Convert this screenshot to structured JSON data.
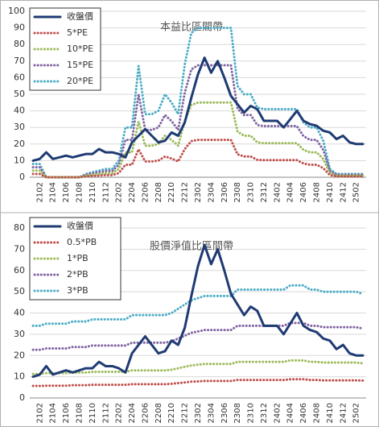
{
  "chart_data": [
    {
      "type": "line",
      "title": "本益比區間帶",
      "legend": "upper left",
      "grid": true,
      "categories": [
        null,
        "2102",
        null,
        "2104",
        null,
        "2106",
        null,
        "2108",
        null,
        "2110",
        null,
        "2112",
        null,
        "2202",
        null,
        "2204",
        null,
        "2206",
        null,
        "2208",
        null,
        "2210",
        null,
        "2212",
        null,
        "2302",
        null,
        "2304",
        null,
        "2306",
        null,
        "2308",
        null,
        "2310",
        null,
        "2312",
        null,
        "2402",
        null,
        "2404",
        null,
        "2406",
        null,
        "2408",
        null,
        "2410",
        null,
        "2412",
        null,
        "2502",
        null
      ],
      "ylim": [
        0,
        100
      ],
      "yticks": [
        0,
        10,
        20,
        30,
        40,
        50,
        60,
        70,
        80,
        90,
        100
      ],
      "series": [
        {
          "name": "收盤價",
          "color": "#1f3b73",
          "style": "solid",
          "values": [
            10,
            11,
            15,
            11,
            12,
            13,
            12,
            13,
            14,
            14,
            17,
            15,
            15,
            14,
            12,
            21,
            25,
            29,
            25,
            21,
            22,
            27,
            25,
            33,
            48,
            62,
            72,
            63,
            70,
            60,
            49,
            44,
            39,
            43,
            41,
            34,
            34,
            34,
            30,
            35,
            40,
            34,
            32,
            31,
            28,
            27,
            23,
            25,
            21,
            20,
            20
          ]
        },
        {
          "name": "5*PE",
          "color": "#c0504d",
          "style": "dotted",
          "values": [
            2,
            2,
            0,
            0,
            0,
            0,
            0,
            0,
            0.5,
            0.8,
            1,
            1.3,
            1.3,
            2.5,
            7.5,
            7.5,
            16.8,
            9.5,
            9.5,
            10,
            12.5,
            11.3,
            9.5,
            17,
            21.8,
            22.5,
            22.5,
            22.5,
            22.5,
            22.5,
            22.5,
            13.8,
            12.5,
            12.5,
            10.5,
            10.3,
            10.3,
            10.3,
            10.3,
            10.3,
            10.3,
            8.3,
            7.5,
            7.5,
            5.5,
            1.3,
            0.5,
            0.5,
            0.5,
            0.5,
            0.5
          ]
        },
        {
          "name": "10*PE",
          "color": "#9bbb59",
          "style": "dotted",
          "values": [
            4,
            4,
            0,
            0,
            0,
            0,
            0,
            0,
            1,
            1.5,
            2,
            2.5,
            2.5,
            5,
            15,
            15,
            33.5,
            19,
            19,
            20,
            25,
            22.5,
            19,
            34,
            43.5,
            45,
            45,
            45,
            45,
            45,
            45,
            27.5,
            25,
            25,
            21,
            20.5,
            20.5,
            20.5,
            20.5,
            20.5,
            20.5,
            16.5,
            15,
            15,
            11,
            2.5,
            1,
            1,
            1,
            1,
            1
          ]
        },
        {
          "name": "15*PE",
          "color": "#8064a2",
          "style": "dotted",
          "values": [
            6,
            6,
            0,
            0,
            0,
            0,
            0,
            0,
            1.5,
            2.3,
            3,
            3.8,
            3.8,
            7.5,
            22.5,
            22.5,
            50,
            28.5,
            28.5,
            30,
            37.5,
            33.8,
            28.5,
            51,
            65,
            67.5,
            67.5,
            67.5,
            67.5,
            67.5,
            67.5,
            41.3,
            37.5,
            37.5,
            31.5,
            30.8,
            30.8,
            30.8,
            30.8,
            30.8,
            30.8,
            24.8,
            22.5,
            22.5,
            16.5,
            3.8,
            1.5,
            1.5,
            1.5,
            1.5,
            1.5
          ]
        },
        {
          "name": "20*PE",
          "color": "#4bacc6",
          "style": "dotted",
          "values": [
            8,
            8,
            0,
            0,
            0,
            0,
            0,
            0,
            2,
            3,
            4,
            5,
            5,
            10,
            30,
            30,
            67,
            38,
            38,
            40,
            50,
            45,
            38,
            68,
            87,
            90,
            90,
            90,
            90,
            90,
            90,
            55,
            50,
            50,
            42,
            41,
            41,
            41,
            41,
            41,
            41,
            33,
            30,
            30,
            22,
            5,
            2,
            2,
            2,
            2,
            2
          ]
        }
      ]
    },
    {
      "type": "line",
      "title": "股價淨值比區間帶",
      "legend": "upper left",
      "grid": true,
      "categories": [
        null,
        "2102",
        null,
        "2104",
        null,
        "2106",
        null,
        "2108",
        null,
        "2110",
        null,
        "2112",
        null,
        "2202",
        null,
        "2204",
        null,
        "2206",
        null,
        "2208",
        null,
        "2210",
        null,
        "2212",
        null,
        "2302",
        null,
        "2304",
        null,
        "2306",
        null,
        "2308",
        null,
        "2310",
        null,
        "2312",
        null,
        "2402",
        null,
        "2404",
        null,
        "2406",
        null,
        "2408",
        null,
        "2410",
        null,
        "2412",
        null,
        "2502",
        null
      ],
      "ylim": [
        0,
        80
      ],
      "yticks": [
        0,
        10,
        20,
        30,
        40,
        50,
        60,
        70,
        80
      ],
      "series": [
        {
          "name": "收盤價",
          "color": "#1f3b73",
          "style": "solid",
          "values": [
            10,
            11,
            15,
            11,
            12,
            13,
            12,
            13,
            14,
            14,
            17,
            15,
            15,
            14,
            12,
            21,
            25,
            29,
            25,
            21,
            22,
            27,
            25,
            33,
            48,
            62,
            72,
            63,
            70,
            60,
            49,
            44,
            39,
            43,
            41,
            34,
            34,
            34,
            30,
            35,
            40,
            34,
            32,
            31,
            28,
            27,
            23,
            25,
            21,
            20,
            20
          ]
        },
        {
          "name": "0.5*PB",
          "color": "#c0504d",
          "style": "dotted",
          "values": [
            5.7,
            5.7,
            5.8,
            5.8,
            5.8,
            5.8,
            6,
            6,
            6,
            6.2,
            6.2,
            6.2,
            6.2,
            6.2,
            6.2,
            6.5,
            6.5,
            6.5,
            6.5,
            6.5,
            6.5,
            6.7,
            7,
            7.3,
            7.7,
            7.8,
            8,
            8,
            8,
            8,
            8,
            8.5,
            8.5,
            8.5,
            8.5,
            8.5,
            8.5,
            8.5,
            8.5,
            8.8,
            8.8,
            8.8,
            8.5,
            8.5,
            8.3,
            8.3,
            8.3,
            8.3,
            8.3,
            8.3,
            8.2
          ]
        },
        {
          "name": "1*PB",
          "color": "#9bbb59",
          "style": "dotted",
          "values": [
            11.3,
            11.3,
            11.7,
            11.7,
            11.7,
            11.7,
            12,
            12,
            12,
            12.3,
            12.3,
            12.3,
            12.3,
            12.3,
            12.3,
            13,
            13,
            13,
            13,
            13,
            13,
            13.3,
            14,
            14.7,
            15.3,
            15.7,
            16,
            16,
            16,
            16,
            16,
            17,
            17,
            17,
            17,
            17,
            17,
            17,
            17,
            17.7,
            17.7,
            17.7,
            17,
            17,
            16.7,
            16.7,
            16.7,
            16.7,
            16.7,
            16.7,
            16.3
          ]
        },
        {
          "name": "2*PB",
          "color": "#8064a2",
          "style": "dotted",
          "values": [
            22.7,
            22.7,
            23.3,
            23.3,
            23.3,
            23.3,
            24,
            24,
            24,
            24.7,
            24.7,
            24.7,
            24.7,
            24.7,
            24.7,
            26,
            26,
            26,
            26,
            26,
            26,
            26.7,
            28,
            29.3,
            30.7,
            31.3,
            32,
            32,
            32,
            32,
            32,
            34,
            34,
            34,
            34,
            34,
            34,
            34,
            34,
            35.3,
            35.3,
            35.3,
            34,
            34,
            33.3,
            33.3,
            33.3,
            33.3,
            33.3,
            33.3,
            32.7
          ]
        },
        {
          "name": "3*PB",
          "color": "#4bacc6",
          "style": "dotted",
          "values": [
            34,
            34,
            35,
            35,
            35,
            35,
            36,
            36,
            36,
            37,
            37,
            37,
            37,
            37,
            37,
            39,
            39,
            39,
            39,
            39,
            39,
            40,
            42,
            44,
            46,
            47,
            48,
            48,
            48,
            48,
            48,
            51,
            51,
            51,
            51,
            51,
            51,
            51,
            51,
            53,
            53,
            53,
            51,
            51,
            50,
            50,
            50,
            50,
            50,
            50,
            49
          ]
        }
      ]
    }
  ]
}
